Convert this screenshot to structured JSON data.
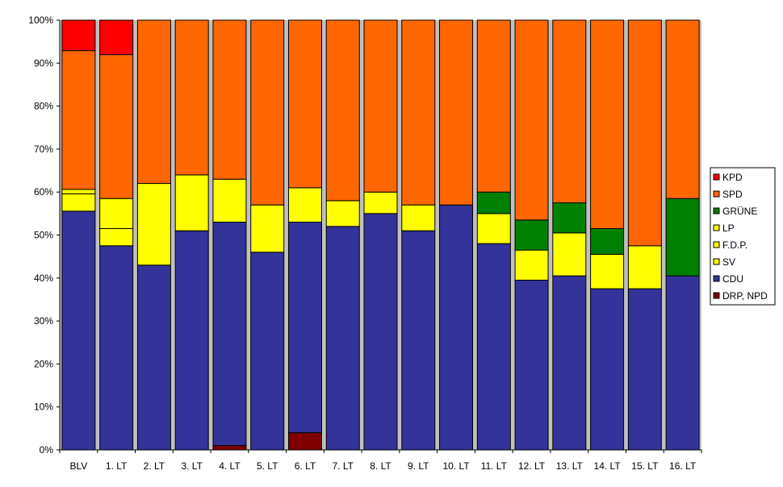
{
  "chart_data": {
    "type": "bar",
    "stacked": true,
    "normalized": true,
    "ylim": [
      0,
      100
    ],
    "y_tick_labels": [
      "0%",
      "10%",
      "20%",
      "30%",
      "40%",
      "50%",
      "60%",
      "70%",
      "80%",
      "90%",
      "100%"
    ],
    "grid": false,
    "legend_position": "right",
    "categories": [
      "BLV",
      "1. LT",
      "2. LT",
      "3. LT",
      "4. LT",
      "5. LT",
      "6. LT",
      "7. LT",
      "8. LT",
      "9. LT",
      "10. LT",
      "11. LT",
      "12. LT",
      "13. LT",
      "14. LT",
      "15. LT",
      "16. LT"
    ],
    "series": [
      {
        "name": "DRP, NPD",
        "color": "#800000",
        "values": [
          0,
          0,
          0,
          0,
          1,
          0,
          4,
          0,
          0,
          0,
          0,
          0,
          0,
          0,
          0,
          0,
          0
        ]
      },
      {
        "name": "CDU",
        "color": "#333399",
        "values": [
          55,
          47.5,
          43,
          51,
          52,
          46,
          49,
          52,
          55,
          51,
          57,
          48,
          39.5,
          40.5,
          37.5,
          37.5,
          40.5
        ]
      },
      {
        "name": "SV",
        "color": "#ffff00",
        "values": [
          4,
          4,
          19,
          13,
          10,
          11,
          8,
          6,
          5,
          6,
          0,
          7,
          7,
          10,
          8,
          10,
          0
        ]
      },
      {
        "name": "F.D.P.",
        "color": "#ffff00",
        "values": [
          1,
          7,
          0,
          0,
          0,
          0,
          0,
          0,
          0,
          0,
          0,
          0,
          0,
          0,
          0,
          0,
          0
        ]
      },
      {
        "name": "LP",
        "color": "#ffff00",
        "values": [
          0,
          0,
          0,
          0,
          0,
          0,
          0,
          0,
          0,
          0,
          0,
          0,
          0,
          0,
          0,
          0,
          0
        ]
      },
      {
        "name": "GRÜNE",
        "color": "#008000",
        "values": [
          0,
          0,
          0,
          0,
          0,
          0,
          0,
          0,
          0,
          0,
          0,
          5,
          7,
          7,
          6,
          0,
          18
        ]
      },
      {
        "name": "SPD",
        "color": "#ff6600",
        "values": [
          32,
          33.5,
          38,
          36,
          37,
          43,
          39,
          42,
          40,
          43,
          43,
          40,
          46.5,
          42.5,
          48.5,
          52.5,
          41.5
        ]
      },
      {
        "name": "KPD",
        "color": "#ff0000",
        "values": [
          7,
          8,
          0,
          0,
          0,
          0,
          0,
          0,
          0,
          0,
          0,
          0,
          0,
          0,
          0,
          0,
          0
        ]
      }
    ],
    "legend_order": [
      "KPD",
      "SPD",
      "GRÜNE",
      "LP",
      "F.D.P.",
      "SV",
      "CDU",
      "DRP, NPD"
    ]
  }
}
